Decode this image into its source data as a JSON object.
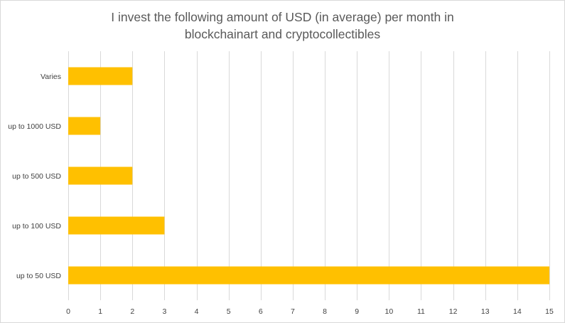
{
  "chart_data": {
    "type": "bar",
    "orientation": "horizontal",
    "title_lines": [
      "I invest the following amount of USD (in average) per month in",
      "blockchainart and cryptocollectibles"
    ],
    "categories": [
      "Varies",
      "up to 1000 USD",
      "up to 500 USD",
      "up to 100 USD",
      "up to 50 USD"
    ],
    "values": [
      2,
      1,
      2,
      3,
      15
    ],
    "xlim": [
      0,
      15
    ],
    "xticks": [
      0,
      1,
      2,
      3,
      4,
      5,
      6,
      7,
      8,
      9,
      10,
      11,
      12,
      13,
      14,
      15
    ],
    "grid": "vertical",
    "legend": "none",
    "bar_color": "#FFC000",
    "grid_color": "#D9D9D9"
  }
}
